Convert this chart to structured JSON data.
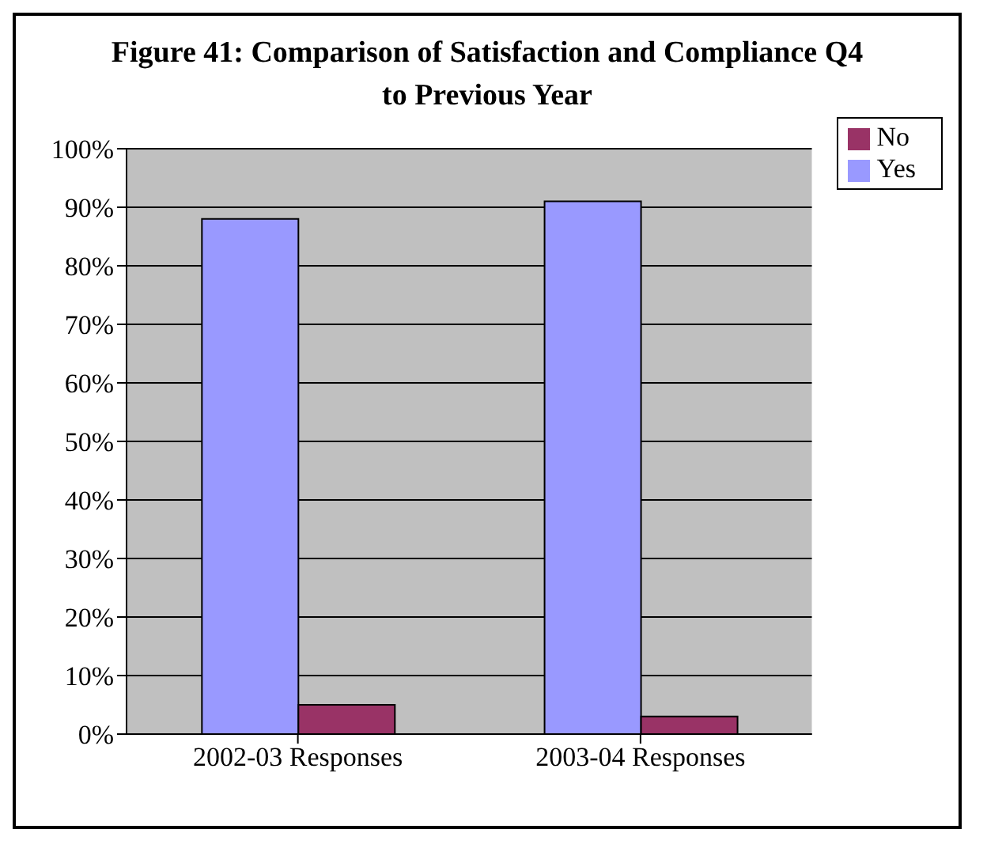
{
  "chart_data": {
    "type": "bar",
    "title": "Figure 41: Comparison of Satisfaction and Compliance Q4 to Previous Year",
    "categories": [
      "2002-03 Responses",
      "2003-04 Responses"
    ],
    "series": [
      {
        "name": "Yes",
        "color": "#9999ff",
        "values": [
          88,
          91
        ]
      },
      {
        "name": "No",
        "color": "#993366",
        "values": [
          5,
          3
        ]
      }
    ],
    "ylim": [
      0,
      100
    ],
    "yticks": [
      {
        "value": 0,
        "label": "0%"
      },
      {
        "value": 10,
        "label": "10%"
      },
      {
        "value": 20,
        "label": "20%"
      },
      {
        "value": 30,
        "label": "30%"
      },
      {
        "value": 40,
        "label": "40%"
      },
      {
        "value": 50,
        "label": "50%"
      },
      {
        "value": 60,
        "label": "60%"
      },
      {
        "value": 70,
        "label": "70%"
      },
      {
        "value": 80,
        "label": "80%"
      },
      {
        "value": 90,
        "label": "90%"
      },
      {
        "value": 100,
        "label": "100%"
      }
    ],
    "grid": "y",
    "legend": "top right"
  }
}
